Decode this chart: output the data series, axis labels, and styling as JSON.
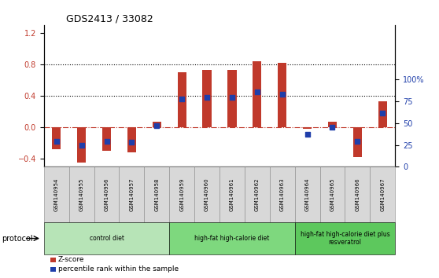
{
  "title": "GDS2413 / 33082",
  "samples": [
    "GSM140954",
    "GSM140955",
    "GSM140956",
    "GSM140957",
    "GSM140958",
    "GSM140959",
    "GSM140960",
    "GSM140961",
    "GSM140962",
    "GSM140963",
    "GSM140964",
    "GSM140965",
    "GSM140966",
    "GSM140967"
  ],
  "z_scores": [
    -0.28,
    -0.45,
    -0.3,
    -0.32,
    0.07,
    0.7,
    0.73,
    0.73,
    0.84,
    0.82,
    -0.02,
    0.07,
    -0.38,
    0.33
  ],
  "percentile_ranks": [
    29,
    25,
    29,
    28,
    47,
    78,
    80,
    80,
    86,
    83,
    37,
    45,
    29,
    62
  ],
  "bar_color": "#C0392B",
  "dot_color": "#1F3EAA",
  "ylim_left": [
    -0.5,
    1.3
  ],
  "ylim_right": [
    0,
    162.5
  ],
  "yticks_left": [
    -0.4,
    0.0,
    0.4,
    0.8,
    1.2
  ],
  "ytick_labels_right_vals": [
    0,
    25,
    50,
    75,
    100
  ],
  "ytick_labels_right": [
    "0",
    "25",
    "50",
    "75",
    "100%"
  ],
  "left_axis_color": "#C0392B",
  "right_axis_color": "#1F3EAA",
  "protocol_groups": [
    {
      "label": "control diet",
      "start": 0,
      "end": 4,
      "color": "#B7E4B7"
    },
    {
      "label": "high-fat high-calorie diet",
      "start": 5,
      "end": 9,
      "color": "#7ED87E"
    },
    {
      "label": "high-fat high-calorie diet plus\nresveratrol",
      "start": 10,
      "end": 13,
      "color": "#5DC85D"
    }
  ],
  "legend_items": [
    {
      "label": "Z-score",
      "color": "#C0392B"
    },
    {
      "label": "percentile rank within the sample",
      "color": "#1F3EAA"
    }
  ],
  "protocol_label": "protocol"
}
